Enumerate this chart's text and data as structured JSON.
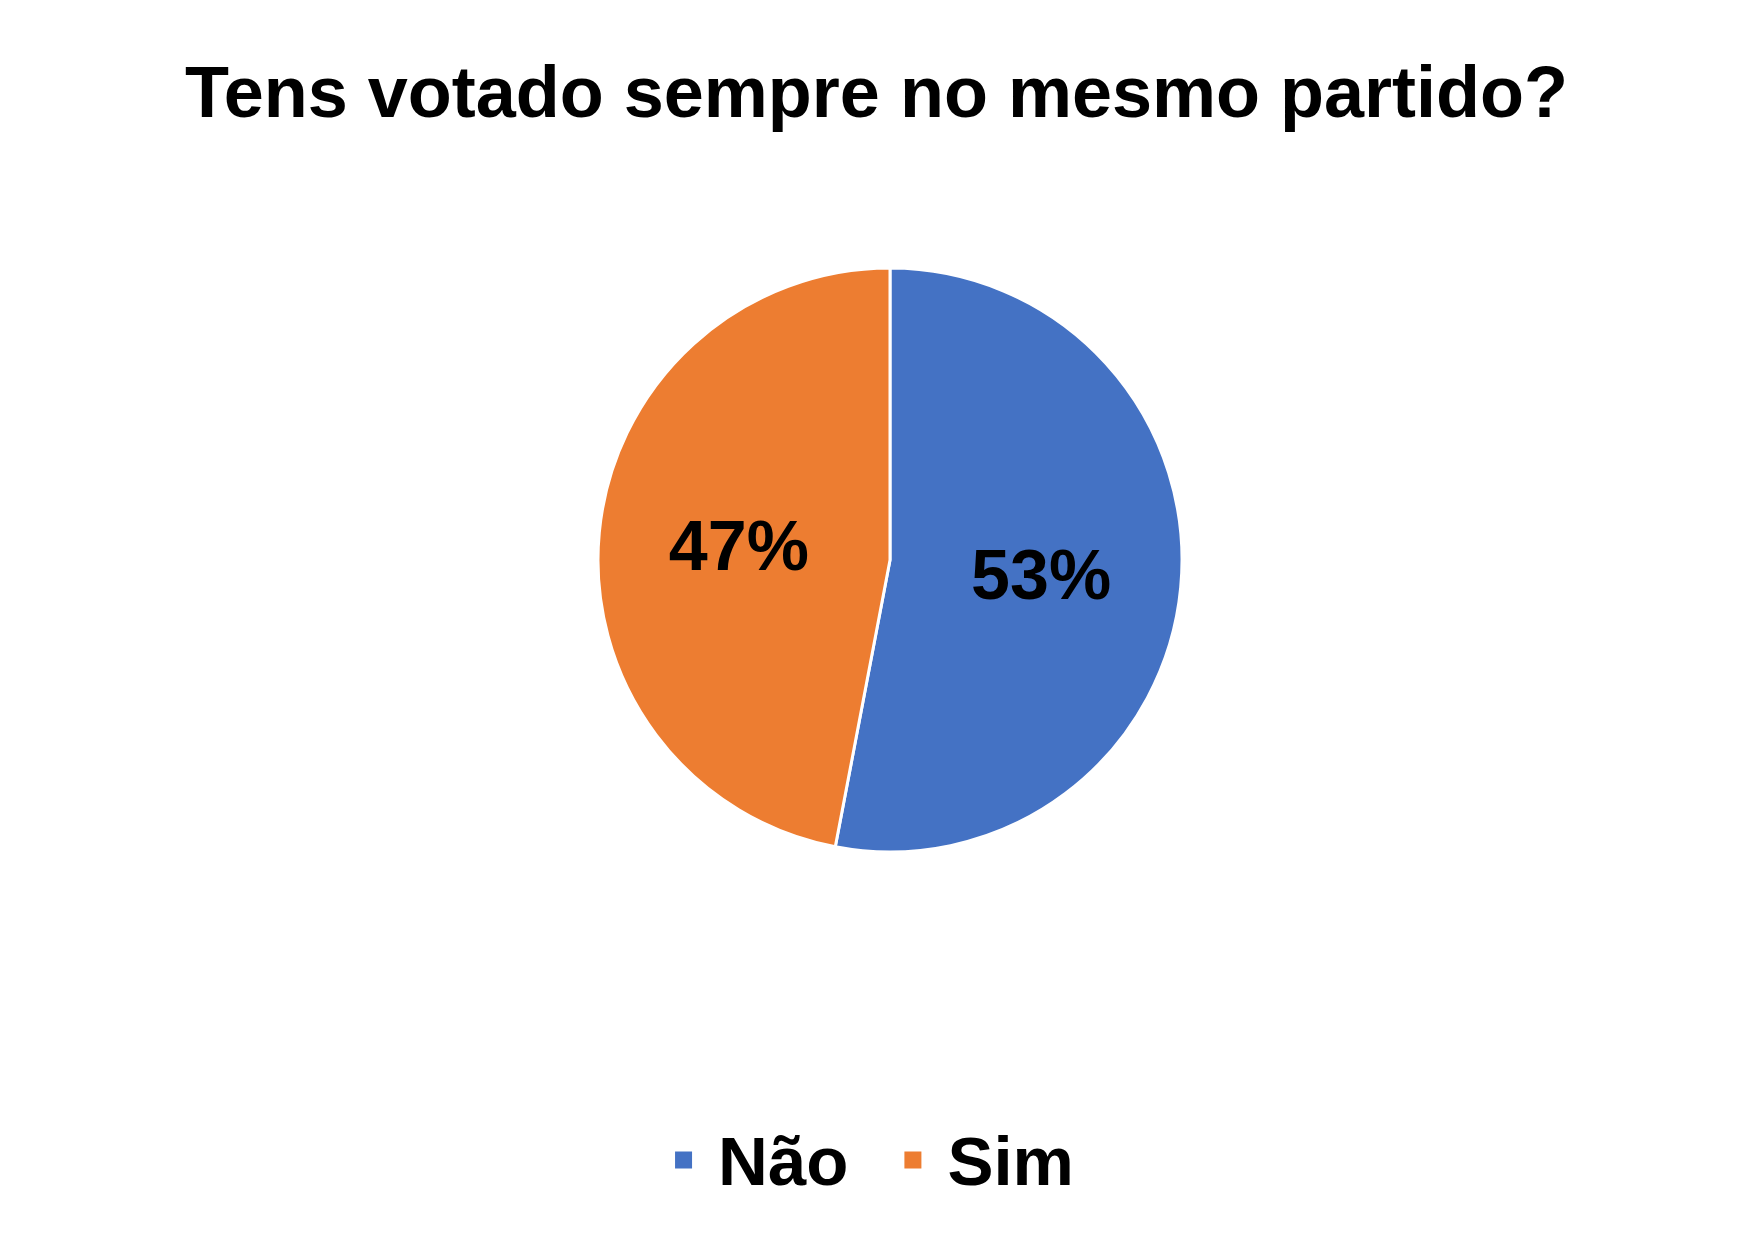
{
  "chart_data": {
    "type": "pie",
    "title": "Tens votado sempre no mesmo partido?",
    "categories": [
      "Não",
      "Sim"
    ],
    "values": [
      53,
      47
    ],
    "colors": [
      "#4472c4",
      "#ed7d31"
    ],
    "value_labels": [
      "53%",
      "47%"
    ],
    "legend": "bottom"
  }
}
